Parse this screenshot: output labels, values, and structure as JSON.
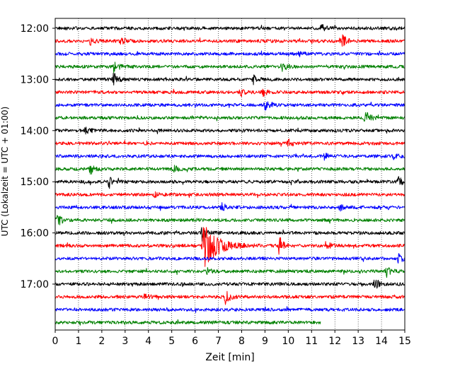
{
  "chart_data": {
    "type": "line",
    "subtype": "helicorder-seismogram",
    "title": "",
    "xlabel": "Zeit  [min]",
    "ylabel": "UTC (Lokalzeit = UTC + 01:00)",
    "x_ticks": [
      "0",
      "1",
      "2",
      "3",
      "4",
      "5",
      "6",
      "7",
      "8",
      "9",
      "10",
      "11",
      "12",
      "13",
      "14",
      "15"
    ],
    "xlim": [
      0,
      15
    ],
    "y_ticks": [
      "12:00",
      "13:00",
      "14:00",
      "15:00",
      "16:00",
      "17:00"
    ],
    "grid": "vertical dotted lines at every minute",
    "legend": "none",
    "trace_interval_minutes": 15,
    "trace_colors_cycle": [
      "#000000",
      "#ff0000",
      "#0000ff",
      "#008000"
    ],
    "traces": [
      {
        "start": "12:00",
        "color": "#000000",
        "end_min": 15,
        "events": [
          {
            "t": 11.4,
            "a": 5
          }
        ]
      },
      {
        "start": "12:15",
        "color": "#ff0000",
        "end_min": 15,
        "events": [
          {
            "t": 12.3,
            "a": 9
          },
          {
            "t": 1.5,
            "a": 5
          },
          {
            "t": 2.8,
            "a": 5
          }
        ]
      },
      {
        "start": "12:30",
        "color": "#0000ff",
        "end_min": 15,
        "events": [
          {
            "t": 10.4,
            "a": 5
          }
        ]
      },
      {
        "start": "12:45",
        "color": "#008000",
        "end_min": 15,
        "events": [
          {
            "t": 2.5,
            "a": 8
          },
          {
            "t": 9.7,
            "a": 7
          }
        ]
      },
      {
        "start": "13:00",
        "color": "#000000",
        "end_min": 15,
        "events": [
          {
            "t": 2.5,
            "a": 9
          },
          {
            "t": 8.5,
            "a": 6
          }
        ]
      },
      {
        "start": "13:15",
        "color": "#ff0000",
        "end_min": 15,
        "events": [
          {
            "t": 7.9,
            "a": 4
          },
          {
            "t": 8.9,
            "a": 5
          }
        ]
      },
      {
        "start": "13:30",
        "color": "#0000ff",
        "end_min": 15,
        "events": [
          {
            "t": 9.0,
            "a": 6
          }
        ]
      },
      {
        "start": "13:45",
        "color": "#008000",
        "end_min": 15,
        "events": [
          {
            "t": 13.3,
            "a": 11
          }
        ]
      },
      {
        "start": "14:00",
        "color": "#000000",
        "end_min": 15,
        "events": [
          {
            "t": 1.3,
            "a": 6
          }
        ]
      },
      {
        "start": "14:15",
        "color": "#ff0000",
        "end_min": 15,
        "events": [
          {
            "t": 10.0,
            "a": 5
          }
        ]
      },
      {
        "start": "14:30",
        "color": "#0000ff",
        "end_min": 15,
        "events": [
          {
            "t": 14.5,
            "a": 6
          },
          {
            "t": 11.5,
            "a": 5
          }
        ]
      },
      {
        "start": "14:45",
        "color": "#008000",
        "end_min": 15,
        "events": [
          {
            "t": 1.5,
            "a": 8
          },
          {
            "t": 5.1,
            "a": 4
          }
        ]
      },
      {
        "start": "15:00",
        "color": "#000000",
        "end_min": 15,
        "events": [
          {
            "t": 2.3,
            "a": 9
          },
          {
            "t": 14.7,
            "a": 8
          }
        ]
      },
      {
        "start": "15:15",
        "color": "#ff0000",
        "end_min": 15,
        "events": [
          {
            "t": 4.2,
            "a": 4
          }
        ]
      },
      {
        "start": "15:30",
        "color": "#0000ff",
        "end_min": 15,
        "events": [
          {
            "t": 7.1,
            "a": 7
          },
          {
            "t": 12.2,
            "a": 4
          }
        ]
      },
      {
        "start": "15:45",
        "color": "#008000",
        "end_min": 15,
        "events": [
          {
            "t": 0.1,
            "a": 8
          }
        ]
      },
      {
        "start": "16:00",
        "color": "#000000",
        "end_min": 15,
        "events": [
          {
            "t": 6.3,
            "a": 10
          }
        ]
      },
      {
        "start": "16:15",
        "color": "#ff0000",
        "end_min": 15,
        "events": [
          {
            "t": 6.35,
            "a": 34
          },
          {
            "t": 9.6,
            "a": 14
          },
          {
            "t": 11.6,
            "a": 6
          }
        ]
      },
      {
        "start": "16:30",
        "color": "#0000ff",
        "end_min": 15,
        "events": [
          {
            "t": 14.7,
            "a": 6
          }
        ]
      },
      {
        "start": "16:45",
        "color": "#008000",
        "end_min": 15,
        "events": [
          {
            "t": 14.2,
            "a": 7
          },
          {
            "t": 6.5,
            "a": 4
          }
        ]
      },
      {
        "start": "17:00",
        "color": "#000000",
        "end_min": 15,
        "events": [
          {
            "t": 13.7,
            "a": 8
          }
        ]
      },
      {
        "start": "17:15",
        "color": "#ff0000",
        "end_min": 15,
        "events": [
          {
            "t": 7.3,
            "a": 10
          },
          {
            "t": 3.8,
            "a": 5
          }
        ]
      },
      {
        "start": "17:30",
        "color": "#0000ff",
        "end_min": 15,
        "events": []
      },
      {
        "start": "17:45",
        "color": "#008000",
        "end_min": 11.4,
        "events": []
      }
    ]
  }
}
